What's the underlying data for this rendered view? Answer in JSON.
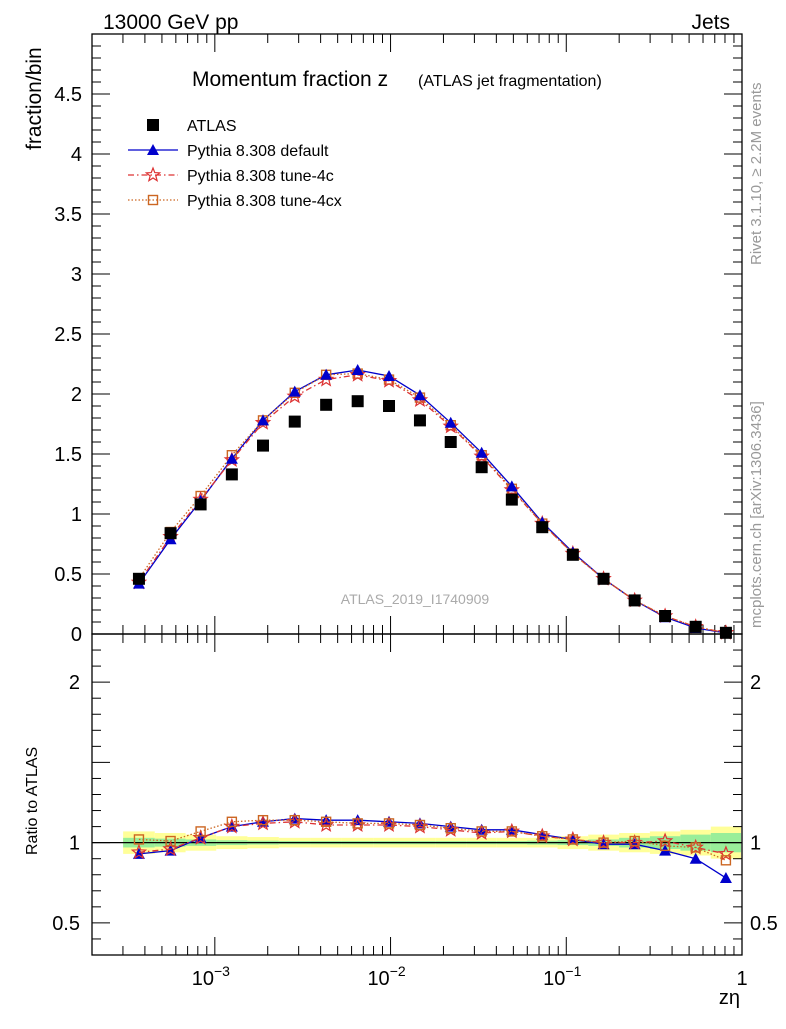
{
  "header": {
    "left": "13000 GeV pp",
    "right": "Jets"
  },
  "side_labels": {
    "rivet": "Rivet 3.1.10, ≥ 2.2M events",
    "mcplots": "mcplots.cern.ch [arXiv:1306.3436]"
  },
  "chart_data": [
    {
      "type": "scatter",
      "title_main": "Momentum fraction z",
      "title_sub": "(ATLAS jet fragmentation)",
      "watermark": "ATLAS_2019_I1740909",
      "ylabel": "fraction/bin",
      "xlabel": "zη",
      "x_scale": "log",
      "xlim": [
        0.0002,
        1
      ],
      "ylim": [
        0,
        5
      ],
      "y_ticks": [
        "0",
        "0.5",
        "1",
        "1.5",
        "2",
        "2.5",
        "3",
        "3.5",
        "4",
        "4.5"
      ],
      "y_tick_values": [
        0,
        0.5,
        1,
        1.5,
        2,
        2.5,
        3,
        3.5,
        4,
        4.5
      ],
      "x_ticks": [
        {
          "base": "10",
          "exp": "−3",
          "value": 0.001
        },
        {
          "base": "10",
          "exp": "−2",
          "value": 0.01
        },
        {
          "base": "10",
          "exp": "−1",
          "value": 0.1
        },
        {
          "base": "1",
          "exp": "",
          "value": 1
        }
      ],
      "legend_position": "top-left",
      "x": [
        0.00037,
        0.00056,
        0.00083,
        0.00125,
        0.00188,
        0.00285,
        0.0043,
        0.0065,
        0.0098,
        0.0147,
        0.022,
        0.033,
        0.049,
        0.073,
        0.109,
        0.163,
        0.245,
        0.365,
        0.545,
        0.81
      ],
      "series": [
        {
          "name": "ATLAS",
          "color": "#000000",
          "marker": "square",
          "values": [
            0.46,
            0.84,
            1.08,
            1.33,
            1.57,
            1.77,
            1.91,
            1.94,
            1.9,
            1.78,
            1.6,
            1.39,
            1.12,
            0.89,
            0.66,
            0.46,
            0.28,
            0.15,
            0.06,
            0.01
          ]
        },
        {
          "name": "Pythia 8.308 default",
          "color": "#0000cc",
          "marker": "triangle",
          "values": [
            0.42,
            0.79,
            1.11,
            1.46,
            1.78,
            2.02,
            2.16,
            2.2,
            2.15,
            1.99,
            1.76,
            1.51,
            1.23,
            0.93,
            0.68,
            0.46,
            0.28,
            0.14,
            0.05,
            0.008
          ]
        },
        {
          "name": "Pythia 8.308 tune-4c",
          "color": "#dd3333",
          "marker": "star",
          "values": [
            0.43,
            0.81,
            1.12,
            1.45,
            1.76,
            1.98,
            2.12,
            2.16,
            2.11,
            1.95,
            1.73,
            1.48,
            1.2,
            0.92,
            0.67,
            0.46,
            0.28,
            0.15,
            0.06,
            0.01
          ]
        },
        {
          "name": "Pythia 8.308 tune-4cx",
          "color": "#cc6622",
          "marker": "open-square",
          "values": [
            0.46,
            0.85,
            1.15,
            1.49,
            1.78,
            2.01,
            2.16,
            2.17,
            2.12,
            1.97,
            1.74,
            1.49,
            1.21,
            0.92,
            0.67,
            0.46,
            0.28,
            0.15,
            0.06,
            0.009
          ]
        }
      ]
    },
    {
      "type": "line",
      "ylabel": "Ratio to ATLAS",
      "ylim": [
        0.3,
        2.3
      ],
      "y_ticks": [
        "0.5",
        "1",
        "2"
      ],
      "y_tick_values": [
        0.5,
        1,
        2
      ],
      "band_outer_halfwidth": [
        0.07,
        0.06,
        0.05,
        0.04,
        0.035,
        0.03,
        0.03,
        0.03,
        0.03,
        0.03,
        0.03,
        0.03,
        0.03,
        0.03,
        0.04,
        0.05,
        0.06,
        0.07,
        0.08,
        0.1
      ],
      "band_inner_halfwidth": [
        0.03,
        0.025,
        0.02,
        0.015,
        0.012,
        0.01,
        0.01,
        0.01,
        0.01,
        0.01,
        0.01,
        0.01,
        0.01,
        0.012,
        0.015,
        0.02,
        0.03,
        0.04,
        0.05,
        0.06
      ],
      "series": [
        {
          "name": "Pythia 8.308 default",
          "values": [
            0.93,
            0.95,
            1.03,
            1.1,
            1.13,
            1.15,
            1.14,
            1.14,
            1.13,
            1.12,
            1.1,
            1.08,
            1.08,
            1.05,
            1.02,
            0.99,
            0.99,
            0.95,
            0.9,
            0.78
          ]
        },
        {
          "name": "Pythia 8.308 tune-4c",
          "values": [
            0.94,
            0.96,
            1.03,
            1.1,
            1.12,
            1.13,
            1.11,
            1.11,
            1.11,
            1.1,
            1.08,
            1.06,
            1.07,
            1.04,
            1.02,
            1.0,
            1.0,
            1.01,
            0.97,
            0.93
          ]
        },
        {
          "name": "Pythia 8.308 tune-4cx",
          "values": [
            1.02,
            1.01,
            1.07,
            1.13,
            1.14,
            1.14,
            1.13,
            1.12,
            1.12,
            1.11,
            1.09,
            1.07,
            1.07,
            1.04,
            1.02,
            1.0,
            1.01,
            0.98,
            0.97,
            0.89
          ]
        }
      ]
    }
  ]
}
